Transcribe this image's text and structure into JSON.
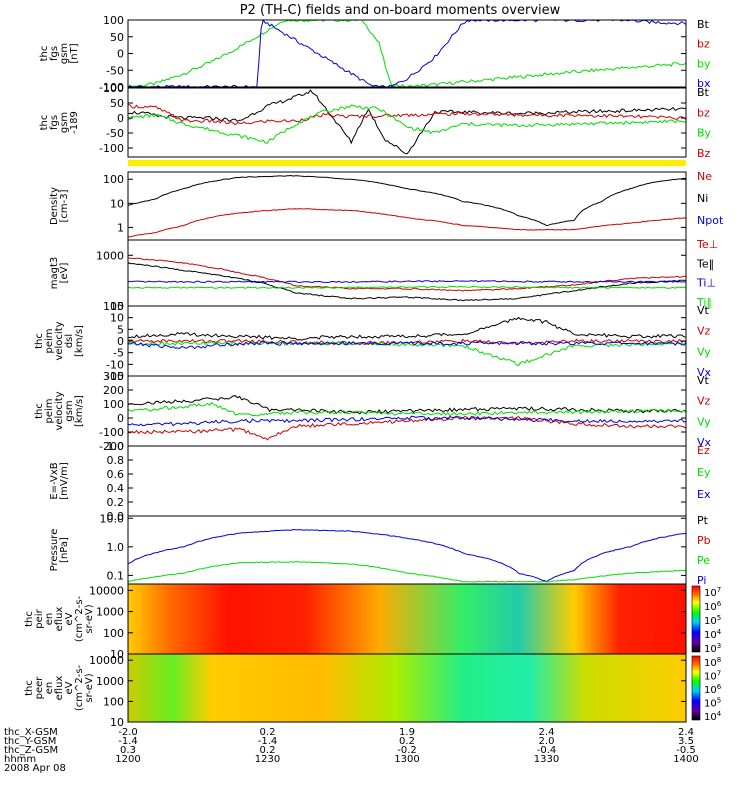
{
  "title": "P2 (TH-C) fields and on-board moments overview",
  "colors": {
    "black": "#000000",
    "red": "#cc0000",
    "green": "#00dd00",
    "blue": "#0000dd",
    "yellow": "#ffee00"
  },
  "chart_data": [
    {
      "type": "line",
      "ylabel": [
        "thc",
        "fgs",
        "gsm",
        "[nT]"
      ],
      "ylim": [
        -100,
        100
      ],
      "yticks": [
        "100",
        "50",
        "0",
        "-50",
        "-100"
      ],
      "legend": [
        {
          "text": "Bt",
          "color": "black"
        },
        {
          "text": "bz",
          "color": "red"
        },
        {
          "text": "by",
          "color": "green"
        },
        {
          "text": "bx",
          "color": "blue"
        }
      ],
      "series": [
        {
          "name": "by",
          "color": "green",
          "x": [
            0,
            0.05,
            0.1,
            0.15,
            0.2,
            0.25,
            0.28,
            0.42,
            0.45,
            0.47,
            0.5,
            0.6,
            0.7,
            0.8,
            0.9,
            1.0
          ],
          "y": [
            -100,
            -90,
            -60,
            -25,
            20,
            70,
            100,
            100,
            30,
            -90,
            -100,
            -85,
            -70,
            -55,
            -42,
            -30
          ]
        },
        {
          "name": "bx",
          "color": "blue",
          "x": [
            0.232,
            0.236,
            0.24,
            0.44,
            0.47,
            0.48,
            0.5,
            0.52,
            0.55,
            0.58,
            0.6,
            0.61,
            0.9,
            0.92,
            1.0
          ],
          "y": [
            -100,
            20,
            100,
            -100,
            -100,
            -92,
            -75,
            -50,
            -10,
            50,
            90,
            100,
            100,
            95,
            90
          ]
        }
      ]
    },
    {
      "type": "line",
      "ylabel": [
        "thc",
        "fgs",
        "gsm",
        "-189"
      ],
      "ylim": [
        -130,
        100
      ],
      "yticks": [
        "100",
        "50",
        "0",
        "-50",
        "-100"
      ],
      "legend": [
        {
          "text": "Bt",
          "color": "black"
        },
        {
          "text": "bz",
          "color": "red"
        },
        {
          "text": "By",
          "color": "green"
        },
        {
          "text": "Bz",
          "color": "red"
        }
      ],
      "series": [
        {
          "name": "black",
          "color": "black",
          "x": [
            0,
            0.03,
            0.06,
            0.1,
            0.15,
            0.2,
            0.25,
            0.3,
            0.33,
            0.38,
            0.4,
            0.43,
            0.46,
            0.5,
            0.55,
            0.6,
            0.7,
            0.8,
            0.9,
            1.0
          ],
          "y": [
            20,
            15,
            5,
            0,
            0,
            -10,
            40,
            70,
            90,
            -30,
            -80,
            30,
            -70,
            -120,
            20,
            20,
            15,
            20,
            25,
            30
          ]
        },
        {
          "name": "red",
          "color": "red",
          "x": [
            0,
            0.05,
            0.1,
            0.15,
            0.2,
            0.25,
            0.3,
            0.35,
            0.4,
            0.5,
            0.6,
            0.7,
            0.8,
            0.9,
            1.0
          ],
          "y": [
            40,
            35,
            -10,
            -10,
            -20,
            -10,
            -10,
            10,
            5,
            10,
            15,
            10,
            10,
            5,
            0
          ]
        },
        {
          "name": "green",
          "color": "green",
          "x": [
            0,
            0.05,
            0.1,
            0.15,
            0.2,
            0.25,
            0.3,
            0.35,
            0.4,
            0.45,
            0.5,
            0.55,
            0.6,
            0.7,
            0.8,
            0.9,
            1.0
          ],
          "y": [
            0,
            10,
            -20,
            -40,
            -60,
            -80,
            -20,
            20,
            40,
            30,
            -30,
            -50,
            -20,
            -25,
            -20,
            -15,
            -10
          ]
        }
      ]
    },
    {
      "type": "line",
      "ylabel": [
        "Density",
        "[cm-3]"
      ],
      "scale": "log",
      "ylim": [
        0.3,
        200
      ],
      "yticks": [
        "100",
        "10",
        "1"
      ],
      "legend": [
        {
          "text": "Ne",
          "color": "red"
        },
        {
          "text": "Ni",
          "color": "black"
        },
        {
          "text": "Npot",
          "color": "blue"
        }
      ],
      "series": [
        {
          "name": "Ni",
          "color": "black",
          "x": [
            0,
            0.05,
            0.1,
            0.2,
            0.3,
            0.4,
            0.5,
            0.6,
            0.7,
            0.75,
            0.8,
            0.85,
            0.9,
            0.95,
            1.0
          ],
          "y": [
            8,
            15,
            40,
            120,
            140,
            100,
            40,
            12,
            3,
            1.2,
            2,
            12,
            40,
            80,
            110
          ]
        },
        {
          "name": "Ne",
          "color": "red",
          "x": [
            0,
            0.05,
            0.1,
            0.2,
            0.3,
            0.4,
            0.5,
            0.6,
            0.7,
            0.8,
            0.9,
            1.0
          ],
          "y": [
            0.4,
            0.6,
            1.2,
            4,
            6,
            5,
            2.5,
            1.2,
            0.8,
            0.8,
            1.5,
            2.5
          ]
        }
      ]
    },
    {
      "type": "line",
      "ylabel": [
        "magt3",
        "[eV]"
      ],
      "scale": "log",
      "ylim": [
        100,
        2000
      ],
      "yticks": [
        "1000",
        "100"
      ],
      "legend": [
        {
          "text": "Te⊥",
          "color": "red"
        },
        {
          "text": "Te‖",
          "color": "black"
        },
        {
          "text": "Ti⊥",
          "color": "blue"
        },
        {
          "text": "Ti‖",
          "color": "green"
        }
      ],
      "series": [
        {
          "name": "Te⊥",
          "color": "red",
          "x": [
            0,
            0.1,
            0.2,
            0.3,
            0.4,
            0.5,
            0.6,
            0.7,
            0.8,
            0.9,
            1.0
          ],
          "y": [
            900,
            700,
            450,
            250,
            220,
            220,
            200,
            220,
            260,
            350,
            380
          ]
        },
        {
          "name": "Te‖",
          "color": "black",
          "x": [
            0,
            0.1,
            0.2,
            0.3,
            0.4,
            0.5,
            0.6,
            0.7,
            0.8,
            0.9,
            1.0
          ],
          "y": [
            700,
            500,
            350,
            180,
            140,
            150,
            130,
            140,
            200,
            280,
            320
          ]
        },
        {
          "name": "Ti⊥",
          "color": "blue",
          "x": [
            0,
            0.2,
            0.4,
            0.6,
            0.8,
            1.0
          ],
          "y": [
            300,
            300,
            300,
            310,
            300,
            300
          ]
        },
        {
          "name": "Ti‖",
          "color": "green",
          "x": [
            0,
            0.2,
            0.4,
            0.6,
            0.8,
            1.0
          ],
          "y": [
            230,
            230,
            230,
            240,
            230,
            230
          ]
        }
      ]
    },
    {
      "type": "line",
      "ylabel": [
        "thc",
        "peim",
        "velocity",
        "dsl",
        "[km/s]"
      ],
      "ylim": [
        -15,
        15
      ],
      "yticks": [
        "15",
        "10",
        "5",
        "0",
        "-5",
        "-10",
        "-15"
      ],
      "legend": [
        {
          "text": "Vt",
          "color": "black"
        },
        {
          "text": "Vz",
          "color": "red"
        },
        {
          "text": "Vy",
          "color": "green"
        },
        {
          "text": "Vx",
          "color": "blue"
        }
      ],
      "series": [
        {
          "name": "Vt",
          "color": "black",
          "x": [
            0,
            0.1,
            0.2,
            0.3,
            0.4,
            0.5,
            0.6,
            0.65,
            0.7,
            0.75,
            0.8,
            0.9,
            1.0
          ],
          "y": [
            2,
            3,
            2,
            1,
            2,
            2,
            3,
            6,
            10,
            8,
            3,
            2,
            2
          ]
        },
        {
          "name": "Vz",
          "color": "red",
          "x": [
            0,
            0.2,
            0.4,
            0.6,
            0.7,
            0.8,
            1.0
          ],
          "y": [
            0,
            0,
            -1,
            0,
            -1,
            0,
            0
          ]
        },
        {
          "name": "Vy",
          "color": "green",
          "x": [
            0,
            0.2,
            0.4,
            0.6,
            0.65,
            0.7,
            0.75,
            0.8,
            1.0
          ],
          "y": [
            -1,
            -1,
            -1,
            -2,
            -6,
            -10,
            -6,
            -2,
            -1
          ]
        },
        {
          "name": "Vx",
          "color": "blue",
          "x": [
            0,
            0.1,
            0.2,
            0.4,
            0.6,
            0.8,
            1.0
          ],
          "y": [
            -1,
            -3,
            -1,
            -1,
            -1,
            -1,
            -1
          ]
        }
      ]
    },
    {
      "type": "line",
      "ylabel": [
        "thc",
        "peim",
        "velocity",
        "gsm",
        "[km/s]"
      ],
      "ylim": [
        -200,
        300
      ],
      "yticks": [
        "300",
        "200",
        "100",
        "0",
        "-100",
        "-200"
      ],
      "legend": [
        {
          "text": "Vt",
          "color": "black"
        },
        {
          "text": "Vz",
          "color": "red"
        },
        {
          "text": "Vy",
          "color": "green"
        },
        {
          "text": "Vx",
          "color": "blue"
        }
      ],
      "series": [
        {
          "name": "Vt",
          "color": "black",
          "x": [
            0,
            0.1,
            0.2,
            0.25,
            0.3,
            0.4,
            0.5,
            0.6,
            0.7,
            0.8,
            0.9,
            1.0
          ],
          "y": [
            100,
            120,
            150,
            60,
            60,
            40,
            50,
            60,
            70,
            60,
            50,
            50
          ]
        },
        {
          "name": "Vz",
          "color": "red",
          "x": [
            0,
            0.1,
            0.2,
            0.25,
            0.3,
            0.4,
            0.5,
            0.6,
            0.7,
            0.8,
            0.9,
            1.0
          ],
          "y": [
            -100,
            -100,
            -80,
            -150,
            -60,
            -40,
            -20,
            0,
            0,
            -40,
            -60,
            -60
          ]
        },
        {
          "name": "Vy",
          "color": "green",
          "x": [
            0,
            0.1,
            0.15,
            0.2,
            0.3,
            0.4,
            0.5,
            0.6,
            0.7,
            0.8,
            0.9,
            1.0
          ],
          "y": [
            50,
            80,
            100,
            20,
            40,
            40,
            30,
            30,
            40,
            40,
            50,
            50
          ]
        },
        {
          "name": "Vx",
          "color": "blue",
          "x": [
            0,
            0.1,
            0.2,
            0.3,
            0.4,
            0.5,
            0.6,
            0.7,
            0.8,
            0.9,
            1.0
          ],
          "y": [
            -50,
            -40,
            -20,
            -20,
            -10,
            0,
            0,
            -10,
            -20,
            -20,
            -20
          ]
        }
      ]
    },
    {
      "type": "line",
      "ylabel": [
        "E=-VxB",
        "[mV/m]"
      ],
      "ylim": [
        0,
        1
      ],
      "yticks": [
        "1.0",
        "0.8",
        "0.6",
        "0.4",
        "0.2",
        "0.0"
      ],
      "legend": [
        {
          "text": "Ez",
          "color": "red"
        },
        {
          "text": "Ey",
          "color": "green"
        },
        {
          "text": "Ex",
          "color": "blue"
        }
      ],
      "series": []
    },
    {
      "type": "line",
      "ylabel": [
        "Pressure",
        "[nPa]"
      ],
      "scale": "log",
      "ylim": [
        0.05,
        12
      ],
      "yticks": [
        "10.0",
        "1.0",
        "0.1"
      ],
      "legend": [
        {
          "text": "Pt",
          "color": "black"
        },
        {
          "text": "Pb",
          "color": "red"
        },
        {
          "text": "Pe",
          "color": "green"
        },
        {
          "text": "Pi",
          "color": "blue"
        }
      ],
      "series": [
        {
          "name": "Pi",
          "color": "blue",
          "x": [
            0,
            0.1,
            0.2,
            0.3,
            0.4,
            0.5,
            0.6,
            0.7,
            0.75,
            0.8,
            0.9,
            1.0
          ],
          "y": [
            0.25,
            1.0,
            3.0,
            4.0,
            3.5,
            2.0,
            0.6,
            0.12,
            0.06,
            0.15,
            1.0,
            3.0
          ]
        },
        {
          "name": "Pe",
          "color": "green",
          "x": [
            0,
            0.1,
            0.2,
            0.3,
            0.4,
            0.5,
            0.6,
            0.7,
            0.75,
            0.8,
            0.9,
            1.0
          ],
          "y": [
            0.06,
            0.12,
            0.28,
            0.3,
            0.25,
            0.12,
            0.06,
            0.06,
            0.06,
            0.07,
            0.12,
            0.15
          ]
        }
      ]
    },
    {
      "type": "heatmap",
      "ylabel": [
        "thc",
        "peir",
        "en",
        "eflux",
        "eV",
        "(cm^2-s-",
        "sr-eV)"
      ],
      "scale": "log",
      "ylim": [
        10,
        20000
      ],
      "yticks": [
        "10000",
        "1000",
        "100",
        "10"
      ],
      "colorbar_ticks": [
        "10^7",
        "10^6",
        "10^5",
        "10^4",
        "10^3"
      ]
    },
    {
      "type": "heatmap",
      "ylabel": [
        "thc",
        "peer",
        "en",
        "eflux",
        "eV",
        "(cm^2-s-",
        "sr-eV)"
      ],
      "scale": "log",
      "ylim": [
        10,
        20000
      ],
      "yticks": [
        "10000",
        "1000",
        "100",
        "10"
      ],
      "colorbar_ticks": [
        "10^8",
        "10^7",
        "10^6",
        "10^5",
        "10^4"
      ]
    }
  ],
  "x_axis": {
    "rows": [
      {
        "label": "thc_X-GSM",
        "values": [
          "-2.0",
          "0.2",
          "1.9",
          "2.4",
          "2.4"
        ]
      },
      {
        "label": "thc_Y-GSM",
        "values": [
          "-1.4",
          "-1.4",
          "0.2",
          "2.0",
          "3.5"
        ]
      },
      {
        "label": "thc_Z-GSM",
        "values": [
          "0.3",
          "0.2",
          "-0.2",
          "-0.4",
          "-0.5"
        ]
      },
      {
        "label": "hhmm",
        "values": [
          "1200",
          "1230",
          "1300",
          "1330",
          "1400"
        ]
      }
    ],
    "date": "2008 Apr 08"
  }
}
